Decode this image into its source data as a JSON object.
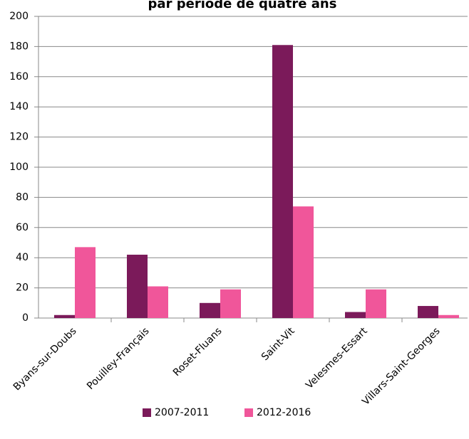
{
  "chart_data": {
    "type": "bar",
    "title": "par période de quatre ans",
    "categories": [
      "Byans-sur-Doubs",
      "Pouilley-Français",
      "Roset-Fluans",
      "Saint-Vit",
      "Velesmes-Essart",
      "Villars-Saint-Georges"
    ],
    "series": [
      {
        "name": "2007-2011",
        "color": "#7b1a5a",
        "values": [
          2,
          42,
          10,
          181,
          4,
          8
        ]
      },
      {
        "name": "2012-2016",
        "color": "#f0569a",
        "values": [
          47,
          21,
          19,
          74,
          19,
          2
        ]
      }
    ],
    "ylim": [
      0,
      200
    ],
    "yticks": [
      0,
      20,
      40,
      60,
      80,
      100,
      120,
      140,
      160,
      180,
      200
    ],
    "grid": true,
    "legend": "bottom"
  }
}
